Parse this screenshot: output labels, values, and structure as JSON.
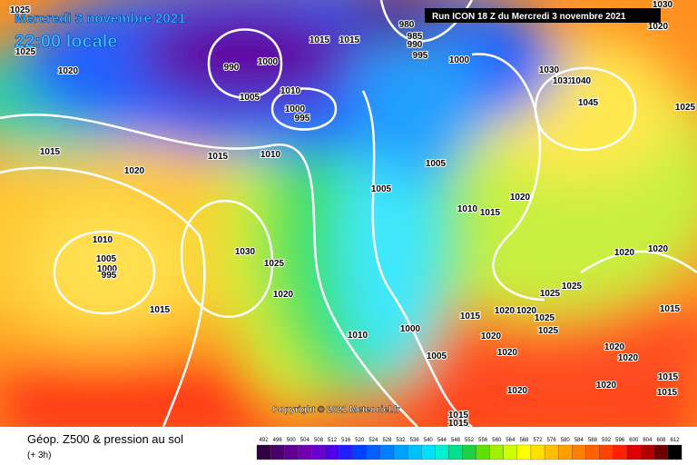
{
  "header": {
    "date": "Mercredi 3 novembre 2021",
    "time": "22:00 locale",
    "run": "Run ICON 18 Z du Mercredi 3 novembre 2021"
  },
  "copyright": "Copyright © 2021 Meteociel.fr",
  "legend": {
    "title": "Géop. Z500 & pression au sol",
    "subtitle": "(+ 3h)",
    "values": [
      492,
      496,
      500,
      504,
      508,
      512,
      516,
      520,
      524,
      528,
      532,
      536,
      540,
      544,
      548,
      552,
      556,
      560,
      564,
      568,
      572,
      576,
      580,
      584,
      588,
      592,
      596,
      600,
      604,
      608,
      612
    ],
    "colors": [
      "#300040",
      "#48006a",
      "#600090",
      "#7000b0",
      "#6a00d0",
      "#5000e8",
      "#2020ff",
      "#0040ff",
      "#0060ff",
      "#0080ff",
      "#00a0ff",
      "#00c0ff",
      "#00e0ff",
      "#00f0d0",
      "#00e090",
      "#20d040",
      "#60e000",
      "#a0f000",
      "#d0ff00",
      "#ffff00",
      "#ffe000",
      "#ffc000",
      "#ffa000",
      "#ff8000",
      "#ff6000",
      "#ff4000",
      "#ff2000",
      "#e00000",
      "#b00000",
      "#700000",
      "#000000"
    ]
  },
  "isobars": [
    1025,
    1025,
    1020,
    1015,
    1020,
    1015,
    1010,
    990,
    1000,
    1005,
    1015,
    1015,
    1010,
    1000,
    995,
    980,
    985,
    990,
    995,
    1000,
    1030,
    1031,
    1040,
    1045,
    1030,
    1020,
    1025,
    1005,
    1005,
    1010,
    1015,
    1020,
    1010,
    1005,
    1000,
    995,
    1030,
    1025,
    1020,
    1015,
    1020,
    1020,
    1025,
    1025,
    1020,
    1020,
    1025,
    1015,
    1020,
    1020,
    1025,
    1000,
    1010,
    1005,
    1020,
    1020,
    1020,
    1015,
    1015,
    1015,
    1020,
    1015,
    1015
  ]
}
